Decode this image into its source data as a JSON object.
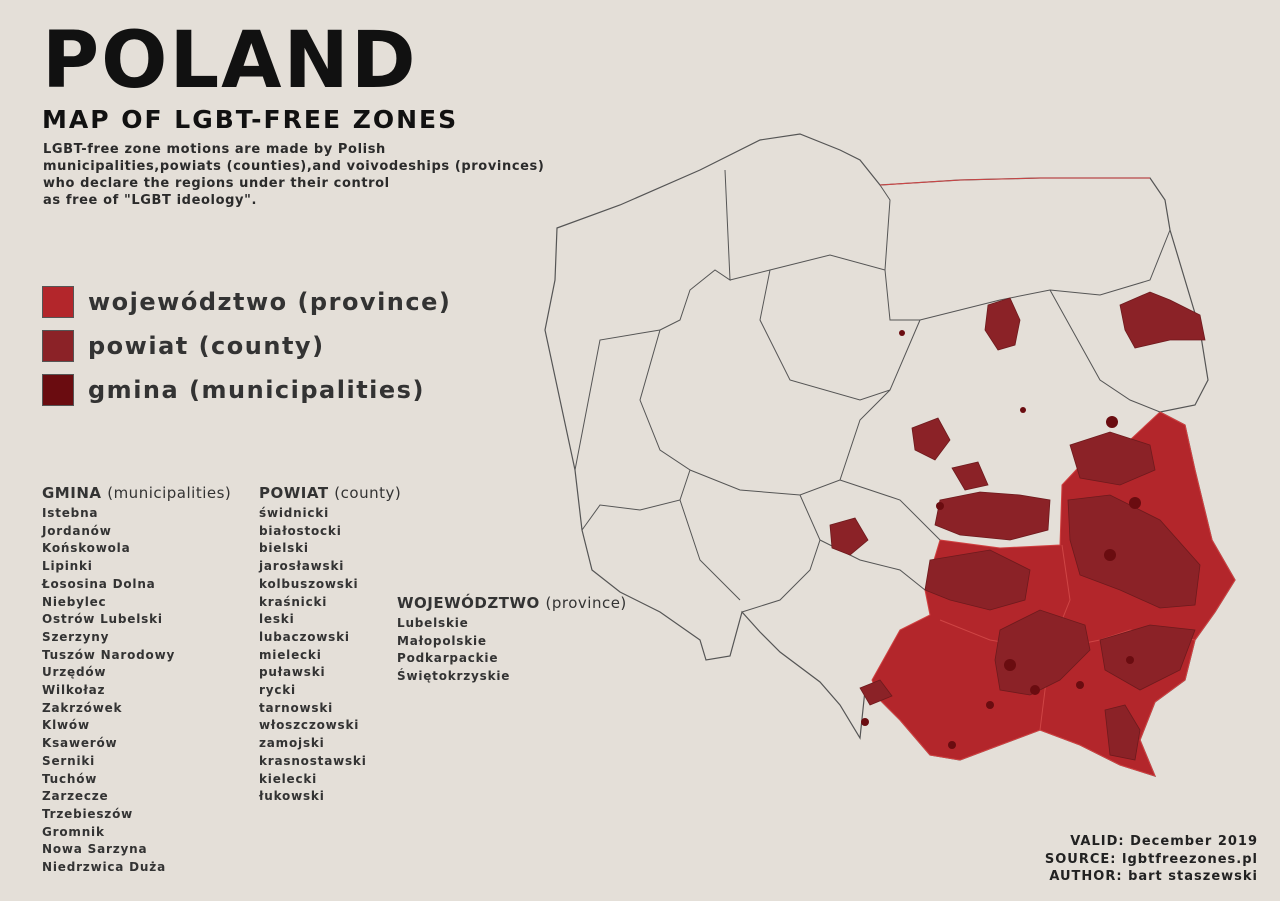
{
  "title": "POLAND",
  "subtitle": "MAP OF LGBT-FREE ZONES",
  "description": [
    "LGBT-free zone motions are made by Polish",
    "municipalities,powiats (counties),and voivodeships (provinces)",
    "who declare the regions under their control",
    "as free of \"LGBT ideology\"."
  ],
  "legend": [
    {
      "label": "województwo (province)",
      "color": "#b3262b"
    },
    {
      "label": "powiat (county)",
      "color": "#8b2227"
    },
    {
      "label": "gmina (municipalities)",
      "color": "#6a0c10"
    }
  ],
  "lists": {
    "gmina": {
      "heading": "GMINA",
      "heading_note": "(municipalities)",
      "items": [
        "Istebna",
        "Jordanów",
        "Końskowola",
        "Lipinki",
        "Łososina Dolna",
        "Niebylec",
        "Ostrów Lubelski",
        "Szerzyny",
        "Tuszów Narodowy",
        "Urzędów",
        "Wilkołaz",
        "Zakrzówek",
        "Klwów",
        "Ksawerów",
        "Serniki",
        "Tuchów",
        "Zarzecze",
        "Trzebieszów",
        "Gromnik",
        "Nowa Sarzyna",
        "Niedrzwica Duża"
      ]
    },
    "powiat": {
      "heading": "POWIAT",
      "heading_note": "(county)",
      "items": [
        "świdnicki",
        "białostocki",
        "bielski",
        "jarosławski",
        "kolbuszowski",
        "kraśnicki",
        "leski",
        "lubaczowski",
        "mielecki",
        "puławski",
        "rycki",
        "tarnowski",
        "włoszczowski",
        "zamojski",
        "krasnostawski",
        "kielecki",
        "łukowski"
      ]
    },
    "wojewodztwo": {
      "heading": "WOJEWÓDZTWO",
      "heading_note": "(province)",
      "items": [
        "Lubelskie",
        "Małopolskie",
        "Podkarpackie",
        "Świętokrzyskie"
      ]
    }
  },
  "footer": {
    "valid": "VALID: December 2019",
    "source": "SOURCE: lgbtfreezones.pl",
    "author": "AUTHOR: bart staszewski"
  },
  "map": {
    "background": "#e4dfd8",
    "border_color": "#555555",
    "province_border_color": "#c83a3a"
  }
}
